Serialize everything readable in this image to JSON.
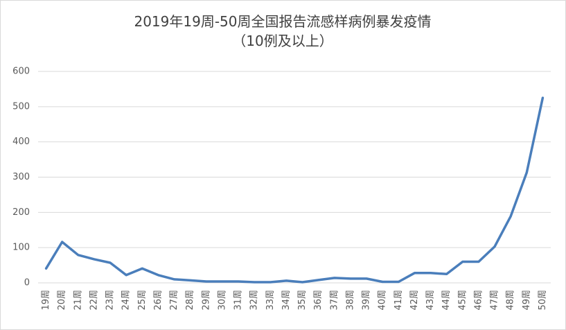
{
  "chart_data": {
    "type": "line",
    "title": "2019年19周-50周全国报告流感样病例暴发疫情",
    "subtitle": "（10例及以上）",
    "categories": [
      "19周",
      "20周",
      "21周",
      "22周",
      "23周",
      "24周",
      "25周",
      "26周",
      "27周",
      "28周",
      "29周",
      "30周",
      "31周",
      "32周",
      "33周",
      "34周",
      "35周",
      "36周",
      "37周",
      "38周",
      "39周",
      "40周",
      "41周",
      "42周",
      "43周",
      "44周",
      "45周",
      "46周",
      "47周",
      "48周",
      "49周",
      "50周"
    ],
    "values": [
      41,
      116,
      79,
      67,
      57,
      22,
      41,
      22,
      10,
      7,
      4,
      4,
      4,
      2,
      2,
      6,
      2,
      8,
      14,
      12,
      12,
      3,
      3,
      28,
      28,
      25,
      60,
      60,
      103,
      189,
      313,
      525
    ],
    "color": "#4a7ebb",
    "ylim": [
      0,
      600
    ],
    "yticks": [
      0,
      100,
      200,
      300,
      400,
      500,
      600
    ],
    "grid": true
  }
}
